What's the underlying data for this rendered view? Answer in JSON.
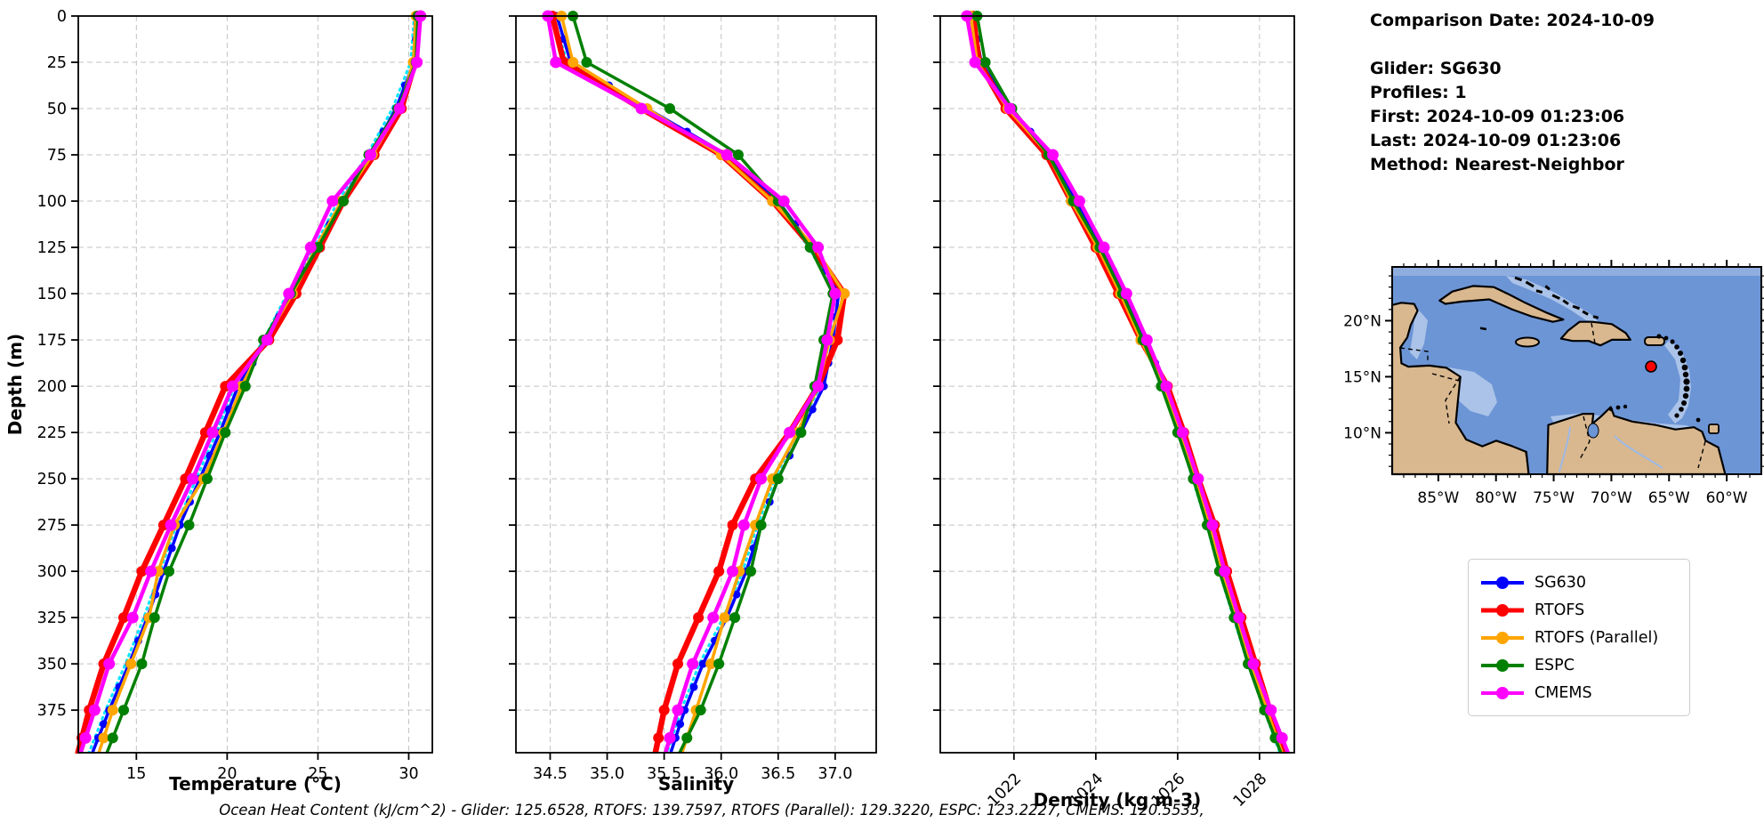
{
  "info": {
    "lines": [
      "Comparison Date: 2024-10-09",
      "",
      "Glider: SG630",
      "Profiles: 1",
      "First: 2024-10-09 01:23:06",
      "Last: 2024-10-09 01:23:06",
      "Method: Nearest-Neighbor"
    ]
  },
  "footer": {
    "ohc_text": "Ocean Heat Content (kJ/cm^2) - Glider: 125.6528,  RTOFS: 139.7597,  RTOFS (Parallel): 129.3220,  ESPC: 123.2227,  CMEMS: 120.5535,"
  },
  "legend": {
    "entries": [
      {
        "label": "SG630",
        "color": "#0000ff"
      },
      {
        "label": "RTOFS",
        "color": "#ff0000"
      },
      {
        "label": "RTOFS (Parallel)",
        "color": "#ffa500"
      },
      {
        "label": "ESPC",
        "color": "#008000"
      },
      {
        "label": "CMEMS",
        "color": "#ff00ff"
      }
    ]
  },
  "accents": {
    "glider_track_color": "#00e5ff",
    "grid_color": "#c3c3c3",
    "spine_color": "#000000"
  },
  "map": {
    "lon_tick_labels": [
      "85°W",
      "80°W",
      "75°W",
      "70°W",
      "65°W",
      "60°W"
    ],
    "lon_ticks_deg_w": [
      85,
      80,
      75,
      70,
      65,
      60
    ],
    "lat_tick_labels": [
      "20°N",
      "15°N",
      "10°N"
    ],
    "lat_ticks_deg_n": [
      20,
      15,
      10
    ],
    "extent_deg": {
      "west": 89,
      "east": 57,
      "north": 24.8,
      "south": 6.3
    },
    "marker": {
      "lon_w": 66.3,
      "lat_n": 15.9,
      "color": "#ff0000"
    },
    "ocean_color": "#6c95d6",
    "shallow_color": "#abc3e8",
    "land_color": "#d9b88f"
  },
  "chart_data": [
    {
      "type": "line",
      "xlabel": "Temperature (°C)",
      "ylabel": "Depth (m)",
      "xlim": [
        11.8,
        31.3
      ],
      "ylim": [
        0,
        398
      ],
      "xticks": [
        15,
        20,
        25,
        30
      ],
      "xtick_labels": [
        "15",
        "20",
        "25",
        "30"
      ],
      "yticks": [
        0,
        25,
        50,
        75,
        100,
        125,
        150,
        175,
        200,
        225,
        250,
        275,
        300,
        325,
        350,
        375
      ],
      "grid": true,
      "depths": [
        0,
        25,
        50,
        75,
        100,
        125,
        150,
        175,
        200,
        225,
        250,
        275,
        300,
        325,
        350,
        375,
        390
      ],
      "series": [
        {
          "name": "SG630",
          "color": "#0000ff",
          "values": [
            30.5,
            30.3,
            29.3,
            27.9,
            26.3,
            25.0,
            23.5,
            22.2,
            20.6,
            19.6,
            18.5,
            17.4,
            16.5,
            15.6,
            14.6,
            13.5,
            12.9
          ]
        },
        {
          "name": "RTOFS",
          "color": "#ff0000",
          "values": [
            30.45,
            30.35,
            29.6,
            28.1,
            26.4,
            25.1,
            23.8,
            22.3,
            19.9,
            18.8,
            17.7,
            16.5,
            15.3,
            14.3,
            13.2,
            12.4,
            12.0
          ]
        },
        {
          "name": "RTOFS (Parallel)",
          "color": "#ffa500",
          "values": [
            30.4,
            30.25,
            29.5,
            28.0,
            26.3,
            24.9,
            23.6,
            22.1,
            20.8,
            19.8,
            18.7,
            17.1,
            16.2,
            15.7,
            14.7,
            13.7,
            13.2
          ]
        },
        {
          "name": "ESPC",
          "color": "#008000",
          "values": [
            30.5,
            30.4,
            29.4,
            27.8,
            26.4,
            25.0,
            23.5,
            22.0,
            21.0,
            19.9,
            18.9,
            17.9,
            16.8,
            16.0,
            15.3,
            14.3,
            13.7
          ]
        },
        {
          "name": "CMEMS",
          "color": "#ff00ff",
          "values": [
            30.65,
            30.45,
            29.5,
            27.9,
            25.8,
            24.6,
            23.4,
            22.2,
            20.3,
            19.2,
            18.1,
            16.9,
            15.8,
            14.8,
            13.5,
            12.7,
            12.2
          ]
        }
      ]
    },
    {
      "type": "line",
      "xlabel": "Salinity",
      "xlim": [
        34.2,
        37.36
      ],
      "ylim": [
        0,
        398
      ],
      "xticks": [
        34.5,
        35.0,
        35.5,
        36.0,
        36.5,
        37.0
      ],
      "xtick_labels": [
        "34.5",
        "35.0",
        "35.5",
        "36.0",
        "36.5",
        "37.0"
      ],
      "yticks": [
        0,
        25,
        50,
        75,
        100,
        125,
        150,
        175,
        200,
        225,
        250,
        275,
        300,
        325,
        350,
        375
      ],
      "grid": true,
      "depths": [
        0,
        25,
        50,
        75,
        100,
        125,
        150,
        175,
        200,
        225,
        250,
        275,
        300,
        325,
        350,
        375,
        390
      ],
      "series": [
        {
          "name": "SG630",
          "color": "#0000ff",
          "values": [
            34.56,
            34.68,
            35.35,
            36.05,
            36.5,
            36.8,
            37.03,
            36.98,
            36.9,
            36.7,
            36.5,
            36.35,
            36.22,
            36.05,
            35.84,
            35.68,
            35.6
          ]
        },
        {
          "name": "RTOFS",
          "color": "#ff0000",
          "values": [
            34.52,
            34.62,
            35.3,
            36.0,
            36.45,
            36.8,
            37.08,
            37.02,
            36.85,
            36.6,
            36.3,
            36.1,
            35.98,
            35.8,
            35.62,
            35.5,
            35.45
          ]
        },
        {
          "name": "RTOFS (Parallel)",
          "color": "#ffa500",
          "values": [
            34.6,
            34.7,
            35.35,
            36.0,
            36.45,
            36.82,
            37.08,
            36.95,
            36.85,
            36.67,
            36.45,
            36.3,
            36.16,
            36.03,
            35.91,
            35.78,
            35.7
          ]
        },
        {
          "name": "ESPC",
          "color": "#008000",
          "values": [
            34.7,
            34.82,
            35.55,
            36.15,
            36.5,
            36.78,
            36.98,
            36.9,
            36.82,
            36.7,
            36.5,
            36.35,
            36.26,
            36.12,
            35.98,
            35.82,
            35.7
          ]
        },
        {
          "name": "CMEMS",
          "color": "#ff00ff",
          "values": [
            34.48,
            34.55,
            35.3,
            36.05,
            36.55,
            36.85,
            37.0,
            36.93,
            36.85,
            36.6,
            36.35,
            36.2,
            36.1,
            35.93,
            35.75,
            35.62,
            35.55
          ]
        }
      ]
    },
    {
      "type": "line",
      "xlabel": "Density (kg m-3)",
      "xlim": [
        1020.2,
        1028.85
      ],
      "ylim": [
        0,
        398
      ],
      "xticks": [
        1022,
        1024,
        1026,
        1028
      ],
      "xtick_labels": [
        "1022",
        "1024",
        "1026",
        "1028"
      ],
      "rotate_xticks": 45,
      "yticks": [
        0,
        25,
        50,
        75,
        100,
        125,
        150,
        175,
        200,
        225,
        250,
        275,
        300,
        325,
        350,
        375
      ],
      "grid": true,
      "depths": [
        0,
        25,
        50,
        75,
        100,
        125,
        150,
        175,
        200,
        225,
        250,
        275,
        300,
        325,
        350,
        375,
        390
      ],
      "series": [
        {
          "name": "SG630",
          "color": "#0000ff",
          "values": [
            1021.0,
            1021.2,
            1021.9,
            1022.9,
            1023.5,
            1024.15,
            1024.7,
            1025.2,
            1025.7,
            1026.1,
            1026.45,
            1026.8,
            1027.1,
            1027.45,
            1027.8,
            1028.2,
            1028.45
          ]
        },
        {
          "name": "RTOFS",
          "color": "#ff0000",
          "values": [
            1021.0,
            1021.15,
            1021.8,
            1022.8,
            1023.4,
            1024.0,
            1024.55,
            1025.1,
            1025.75,
            1026.15,
            1026.5,
            1026.9,
            1027.2,
            1027.55,
            1027.9,
            1028.25,
            1028.5
          ]
        },
        {
          "name": "RTOFS (Parallel)",
          "color": "#ffa500",
          "values": [
            1020.95,
            1021.1,
            1021.85,
            1022.85,
            1023.4,
            1024.05,
            1024.6,
            1025.1,
            1025.65,
            1026.05,
            1026.4,
            1026.78,
            1027.08,
            1027.42,
            1027.78,
            1028.18,
            1028.42
          ]
        },
        {
          "name": "ESPC",
          "color": "#008000",
          "values": [
            1021.1,
            1021.3,
            1021.95,
            1022.85,
            1023.45,
            1024.1,
            1024.65,
            1025.15,
            1025.6,
            1026.0,
            1026.38,
            1026.72,
            1027.02,
            1027.38,
            1027.72,
            1028.12,
            1028.38
          ]
        },
        {
          "name": "CMEMS",
          "color": "#ff00ff",
          "values": [
            1020.85,
            1021.05,
            1021.9,
            1022.95,
            1023.6,
            1024.2,
            1024.75,
            1025.25,
            1025.72,
            1026.12,
            1026.5,
            1026.85,
            1027.15,
            1027.5,
            1027.85,
            1028.28,
            1028.55
          ]
        }
      ]
    }
  ]
}
